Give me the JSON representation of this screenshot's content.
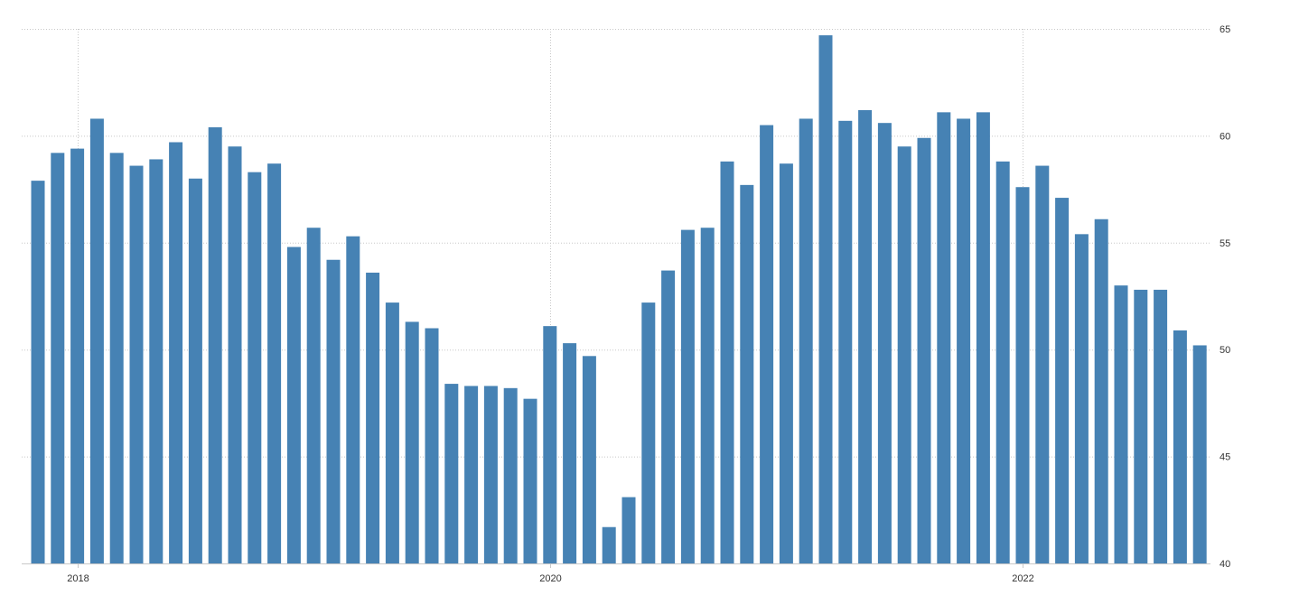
{
  "chart_data": {
    "type": "bar",
    "title": "",
    "xlabel": "",
    "ylabel": "",
    "ylim": [
      40,
      65
    ],
    "yticks": [
      40,
      45,
      50,
      55,
      60,
      65
    ],
    "y_axis_position": "right",
    "grid": true,
    "legend": "none",
    "bar_color": "#4682b4",
    "x_tick_labels": [
      {
        "label": "2018",
        "index": 2
      },
      {
        "label": "2020",
        "index": 26
      },
      {
        "label": "2022",
        "index": 50
      }
    ],
    "categories": [
      "2017-11",
      "2017-12",
      "2018-01",
      "2018-02",
      "2018-03",
      "2018-04",
      "2018-05",
      "2018-06",
      "2018-07",
      "2018-08",
      "2018-09",
      "2018-10",
      "2018-11",
      "2018-12",
      "2019-01",
      "2019-02",
      "2019-03",
      "2019-04",
      "2019-05",
      "2019-06",
      "2019-07",
      "2019-08",
      "2019-09",
      "2019-10",
      "2019-11",
      "2019-12",
      "2020-01",
      "2020-02",
      "2020-03",
      "2020-04",
      "2020-05",
      "2020-06",
      "2020-07",
      "2020-08",
      "2020-09",
      "2020-10",
      "2020-11",
      "2020-12",
      "2021-01",
      "2021-02",
      "2021-03",
      "2021-04",
      "2021-05",
      "2021-06",
      "2021-07",
      "2021-08",
      "2021-09",
      "2021-10",
      "2021-11",
      "2021-12",
      "2022-01",
      "2022-02",
      "2022-03",
      "2022-04",
      "2022-05",
      "2022-06",
      "2022-07",
      "2022-08",
      "2022-09",
      "2022-10"
    ],
    "values": [
      57.9,
      59.2,
      59.4,
      60.8,
      59.2,
      58.6,
      58.9,
      59.7,
      58.0,
      60.4,
      59.5,
      58.3,
      58.7,
      54.8,
      55.7,
      54.2,
      55.3,
      53.6,
      52.2,
      51.3,
      51.0,
      48.4,
      48.3,
      48.3,
      48.2,
      47.7,
      51.1,
      50.3,
      49.7,
      41.7,
      43.1,
      52.2,
      53.7,
      55.6,
      55.7,
      58.8,
      57.7,
      60.5,
      58.7,
      60.8,
      64.7,
      60.7,
      61.2,
      60.6,
      59.5,
      59.9,
      61.1,
      60.8,
      61.1,
      58.8,
      57.6,
      58.6,
      57.1,
      55.4,
      56.1,
      53.0,
      52.8,
      52.8,
      50.9,
      50.2
    ]
  }
}
